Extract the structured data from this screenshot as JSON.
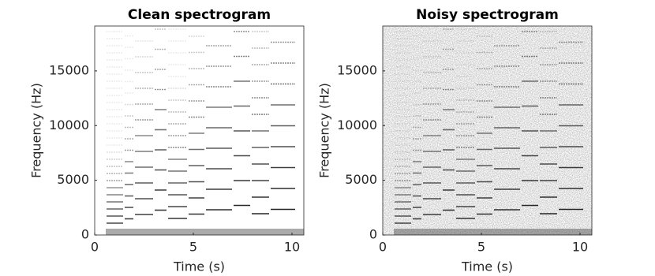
{
  "chart_data": [
    {
      "type": "spectrogram",
      "title": "Clean spectrogram",
      "x_label": "Time (s)",
      "y_label": "Frequency (Hz)",
      "xlim": [
        0,
        10.6
      ],
      "ylim": [
        0,
        19100
      ],
      "xticks": [
        0,
        5,
        10
      ],
      "yticks": [
        0,
        5000,
        10000,
        15000
      ],
      "noise": false
    },
    {
      "type": "spectrogram",
      "title": "Noisy spectrogram",
      "x_label": "Time (s)",
      "y_label": "Frequency (Hz)",
      "xlim": [
        0,
        10.6
      ],
      "ylim": [
        0,
        19100
      ],
      "xticks": [
        0,
        5,
        10
      ],
      "yticks": [
        0,
        5000,
        10000,
        15000
      ],
      "noise": true
    }
  ]
}
